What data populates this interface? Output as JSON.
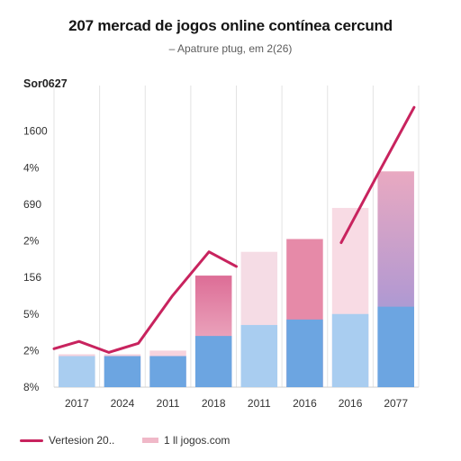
{
  "chart_data": {
    "type": "bar",
    "title": "207 mercad de jogos online contínea cercund",
    "subtitle": "– Apatrure ptug, em 2(26)",
    "corner_label": "Sor0627",
    "y_ticks": [
      "8%",
      "2%",
      "5%",
      "156",
      "2%",
      "690",
      "4%",
      "1600"
    ],
    "x_tick_labels": [
      "2017",
      "2024",
      "2011",
      "2018",
      "2011",
      "2016",
      "2016",
      "2077"
    ],
    "categories": [
      "2017",
      "2024",
      "2011",
      "2018",
      "2011",
      "2016",
      "2016",
      "2077"
    ],
    "ylim": [
      0,
      8
    ],
    "series": [
      {
        "name": "Vertesion 20..",
        "style": "line",
        "color": "#c8235e",
        "points": [
          [
            0,
            1.05
          ],
          [
            0.55,
            1.25
          ],
          [
            1.2,
            0.95
          ],
          [
            1.85,
            1.2
          ],
          [
            2.6,
            2.5
          ],
          [
            3.4,
            3.7
          ],
          [
            4.0,
            3.3
          ],
          [
            7.9,
            7.65
          ]
        ]
      },
      {
        "name": "1 ll jogos.com",
        "style": "bar",
        "color": "#f0b8c8",
        "values": [
          0.9,
          0.9,
          1.0,
          3.05,
          3.7,
          4.05,
          4.9,
          5.9
        ]
      },
      {
        "name": "",
        "style": "bar",
        "color": "#6fa6e0",
        "values": [
          0.85,
          0.85,
          0.85,
          1.4,
          1.7,
          1.85,
          2.0,
          2.2
        ]
      }
    ],
    "legend_position": "bottom-left",
    "grid": "vertical"
  },
  "legend": [
    {
      "label": "Vertesion 20..",
      "kind": "line",
      "color": "#c8235e"
    },
    {
      "label": "1 ll jogos.com",
      "kind": "bar",
      "color": "#f0b8c8"
    }
  ]
}
